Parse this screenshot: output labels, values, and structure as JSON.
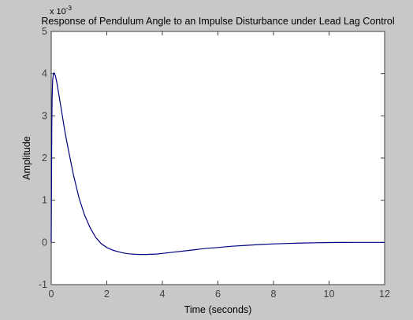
{
  "chart_data": {
    "type": "line",
    "title": "Response of Pendulum Angle to an Impulse Disturbance under Lead Lag Control",
    "xlabel": "Time (seconds)",
    "ylabel": "Amplitude",
    "exponent_label": "x 10^-3",
    "xlim": [
      0,
      12
    ],
    "ylim": [
      -1,
      5
    ],
    "xticks": [
      0,
      2,
      4,
      6,
      8,
      10,
      12
    ],
    "yticks": [
      -1,
      0,
      1,
      2,
      3,
      4,
      5
    ],
    "grid": false,
    "series": [
      {
        "color": "#000080",
        "x": [
          0,
          0.02,
          0.03,
          0.05,
          0.08,
          0.1,
          0.15,
          0.2,
          0.3,
          0.4,
          0.5,
          0.6,
          0.8,
          1.0,
          1.2,
          1.4,
          1.6,
          1.8,
          2.0,
          2.2,
          2.4,
          2.6,
          2.8,
          3.0,
          3.2,
          3.4,
          3.6,
          3.8,
          4.0,
          4.4,
          4.8,
          5.2,
          5.6,
          6.0,
          6.5,
          7.0,
          7.5,
          8.0,
          8.5,
          9.0,
          9.5,
          10.0,
          10.5,
          11.0,
          11.5,
          12.0
        ],
        "y": [
          0,
          2.7,
          3.4,
          3.85,
          4.0,
          4.02,
          3.95,
          3.8,
          3.4,
          3.0,
          2.6,
          2.25,
          1.6,
          1.05,
          0.65,
          0.35,
          0.12,
          -0.03,
          -0.12,
          -0.18,
          -0.22,
          -0.25,
          -0.27,
          -0.28,
          -0.285,
          -0.285,
          -0.28,
          -0.275,
          -0.26,
          -0.23,
          -0.2,
          -0.17,
          -0.14,
          -0.12,
          -0.09,
          -0.07,
          -0.05,
          -0.035,
          -0.025,
          -0.015,
          -0.008,
          -0.004,
          -0.001,
          0.0,
          0.0,
          0.0
        ]
      }
    ]
  },
  "colors": {
    "figure_background": "#c8c8c8",
    "axes_background": "#ffffff",
    "line": "#000080"
  }
}
